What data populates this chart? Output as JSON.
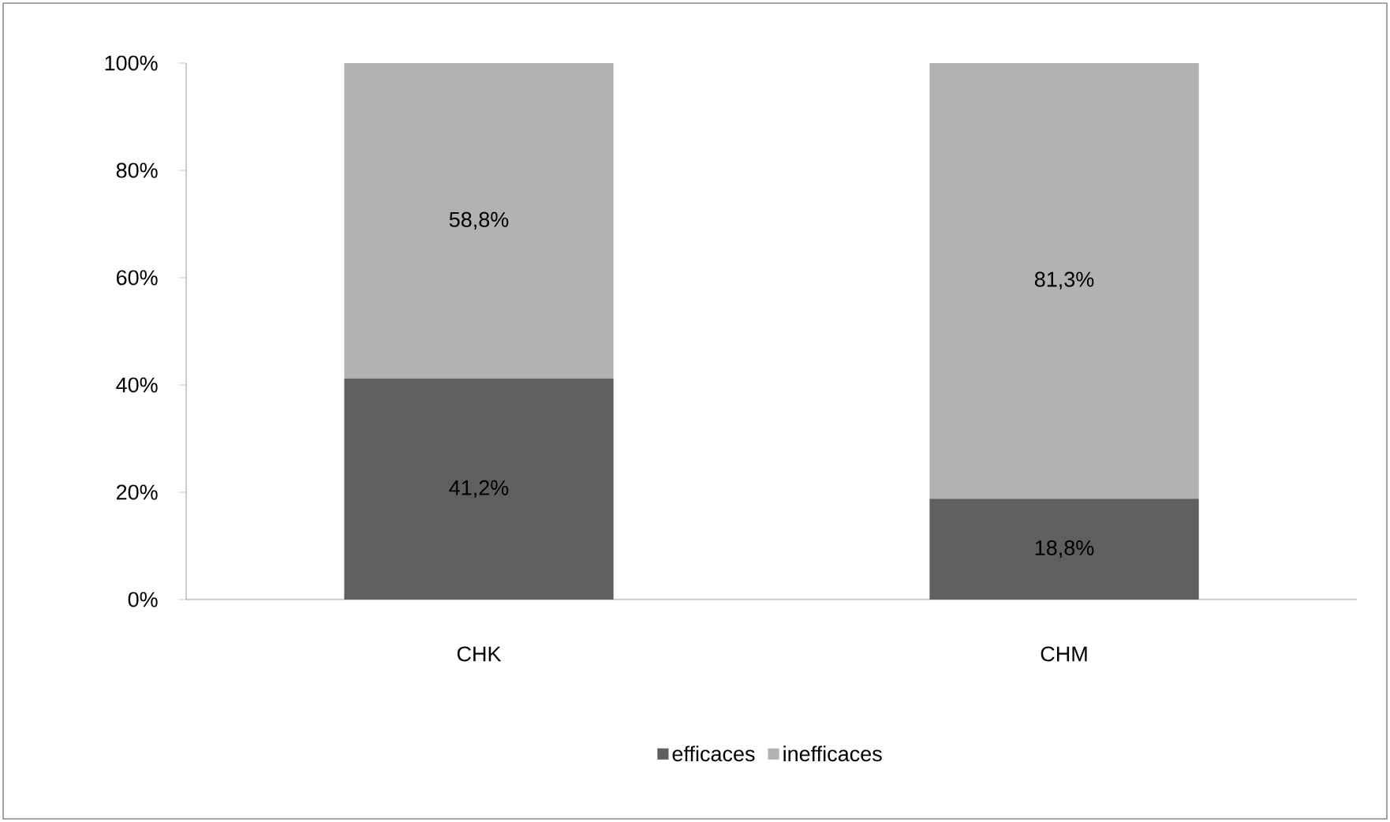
{
  "chart_data": {
    "type": "bar",
    "stacked": true,
    "categories": [
      "CHK",
      "CHM"
    ],
    "series": [
      {
        "name": "efficaces",
        "color": "#5f5f5f",
        "values": [
          41.2,
          18.8
        ],
        "value_labels": [
          "41,2%",
          "18,8%"
        ]
      },
      {
        "name": "inefficaces",
        "color": "#b2b2b2",
        "values": [
          58.8,
          81.3
        ],
        "value_labels": [
          "58,8%",
          "81,3%"
        ]
      }
    ],
    "ylim": [
      0,
      100
    ],
    "yticks": [
      {
        "value": 0,
        "label": "0%"
      },
      {
        "value": 20,
        "label": "20%"
      },
      {
        "value": 40,
        "label": "40%"
      },
      {
        "value": 60,
        "label": "60%"
      },
      {
        "value": 80,
        "label": "80%"
      },
      {
        "value": 100,
        "label": "100%"
      }
    ],
    "grid": false,
    "legend": "bottom"
  }
}
